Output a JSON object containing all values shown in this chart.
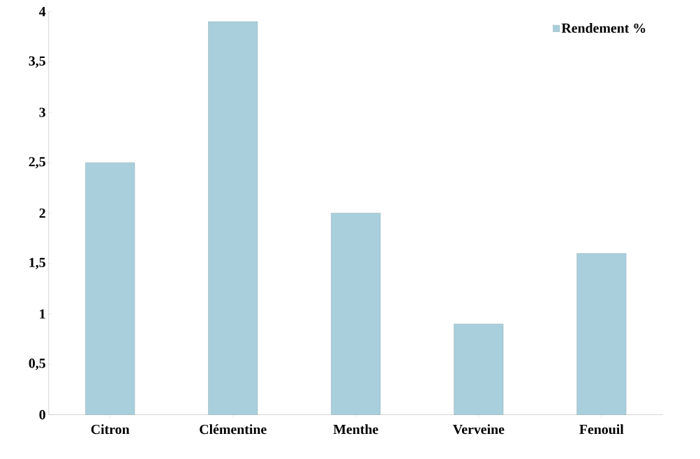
{
  "chart_data": {
    "type": "bar",
    "categories": [
      "Citron",
      "Clémentine",
      "Menthe",
      "Verveine",
      "Fenouil"
    ],
    "series": [
      {
        "name": "Rendement %",
        "color": "#a9cfdc",
        "values": [
          2.5,
          3.9,
          2.0,
          0.9,
          1.6
        ]
      }
    ],
    "ylim": [
      0,
      4
    ],
    "yticks": [
      0,
      {
        "value": 0.5,
        "label": "0,5"
      },
      1,
      {
        "value": 1.5,
        "label": "1,5"
      },
      2,
      {
        "value": 2.5,
        "label": "2,5"
      },
      3,
      {
        "value": 3.5,
        "label": "3,5"
      },
      4
    ],
    "grid": false,
    "legend": "top right"
  }
}
